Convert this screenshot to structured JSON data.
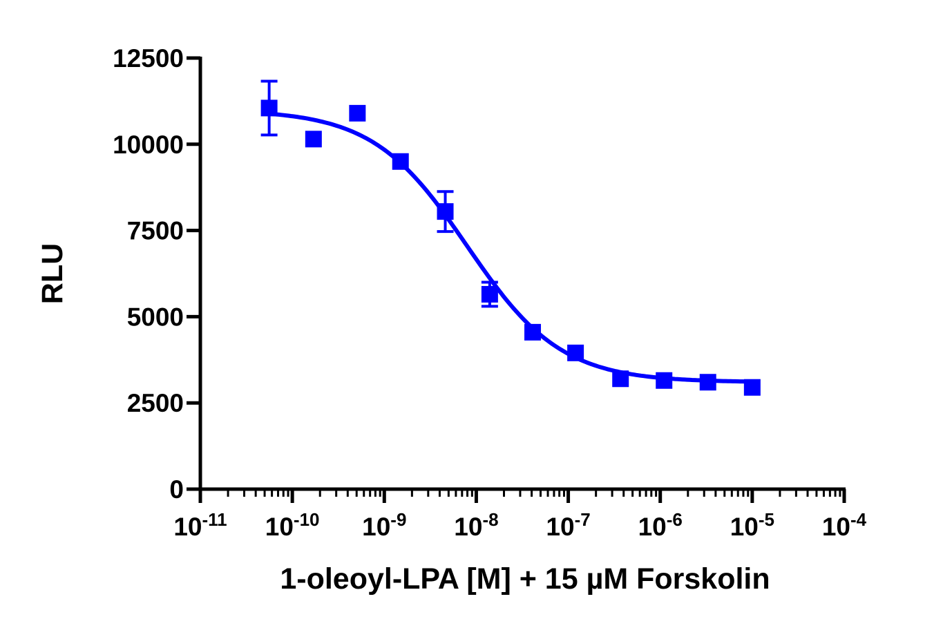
{
  "chart_data": {
    "type": "scatter",
    "title": "",
    "xlabel": "1-oleoyl-LPA [M] + 15 µM Forskolin",
    "ylabel": "RLU",
    "xscale": "log",
    "xlim": [
      1e-11,
      0.0001
    ],
    "ylim": [
      0,
      12500
    ],
    "x_tick_labels": [
      {
        "base": "10",
        "exp": "-11",
        "value": 1e-11
      },
      {
        "base": "10",
        "exp": "-10",
        "value": 1e-10
      },
      {
        "base": "10",
        "exp": "-9",
        "value": 1e-09
      },
      {
        "base": "10",
        "exp": "-8",
        "value": 1e-08
      },
      {
        "base": "10",
        "exp": "-7",
        "value": 1e-07
      },
      {
        "base": "10",
        "exp": "-6",
        "value": 1e-06
      },
      {
        "base": "10",
        "exp": "-5",
        "value": 1e-05
      },
      {
        "base": "10",
        "exp": "-4",
        "value": 0.0001
      }
    ],
    "y_ticks": [
      0,
      2500,
      5000,
      7500,
      10000,
      12500
    ],
    "y_tick_labels": [
      "0",
      "2500",
      "5000",
      "7500",
      "10000",
      "12500"
    ],
    "series": [
      {
        "name": "1-oleoyl-LPA",
        "color": "#0000FF",
        "marker": "square",
        "points": [
          {
            "x": 5.6e-11,
            "y": 11050,
            "err": 780
          },
          {
            "x": 1.7e-10,
            "y": 10150,
            "err": 0
          },
          {
            "x": 5.1e-10,
            "y": 10900,
            "err": 0
          },
          {
            "x": 1.5e-09,
            "y": 9500,
            "err": 0
          },
          {
            "x": 4.6e-09,
            "y": 8050,
            "err": 580
          },
          {
            "x": 1.4e-08,
            "y": 5650,
            "err": 350
          },
          {
            "x": 4.1e-08,
            "y": 4550,
            "err": 0
          },
          {
            "x": 1.2e-07,
            "y": 3950,
            "err": 0
          },
          {
            "x": 3.7e-07,
            "y": 3200,
            "err": 0
          },
          {
            "x": 1.1e-06,
            "y": 3150,
            "err": 0
          },
          {
            "x": 3.3e-06,
            "y": 3100,
            "err": 0
          },
          {
            "x": 1e-05,
            "y": 2950,
            "err": 0
          }
        ],
        "fit": {
          "model": "sigmoidal dose-response",
          "top": 11000,
          "bottom": 3100,
          "log_ic50": -8.1,
          "hill_slope": -0.85,
          "x_range": [
            5.6e-11,
            1e-05
          ]
        }
      }
    ]
  }
}
